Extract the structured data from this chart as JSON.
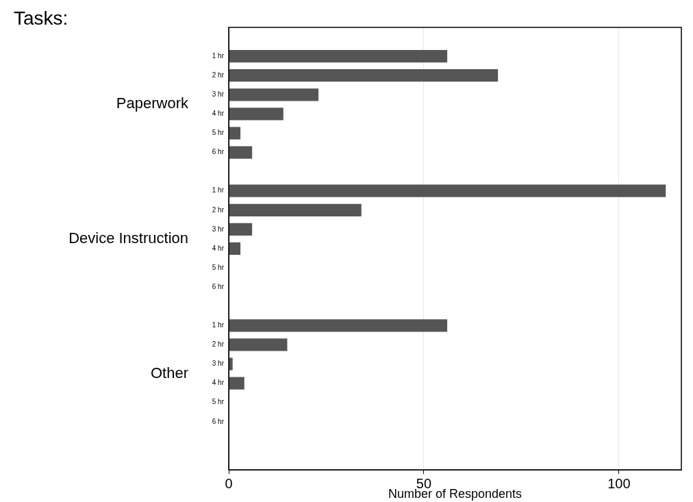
{
  "chart_data": {
    "type": "bar",
    "orientation": "horizontal",
    "title": "Tasks:",
    "xlabel": "Number of Respondents",
    "categories": [
      null,
      "1 hr",
      "2 hr",
      "3 hr",
      "4 hr",
      "5 hr",
      "6 hr",
      null,
      "1 hr",
      "2 hr",
      "3 hr",
      "4 hr",
      "5 hr",
      "6 hr",
      null,
      "1 hr",
      "2 hr",
      "3 hr",
      "4 hr",
      "5 hr",
      "6 hr",
      null,
      null
    ],
    "values": [
      null,
      56,
      69,
      23,
      14,
      3,
      6,
      null,
      112,
      34,
      6,
      3,
      0,
      0,
      null,
      56,
      15,
      1,
      4,
      0,
      0,
      null,
      null
    ],
    "color": "#555555",
    "annotations": [
      "Paperwork",
      "Device Instruction",
      "Other"
    ],
    "xlim": [
      0,
      116
    ],
    "xticks": [
      0,
      50,
      100
    ],
    "grid": "x",
    "legend": false
  }
}
